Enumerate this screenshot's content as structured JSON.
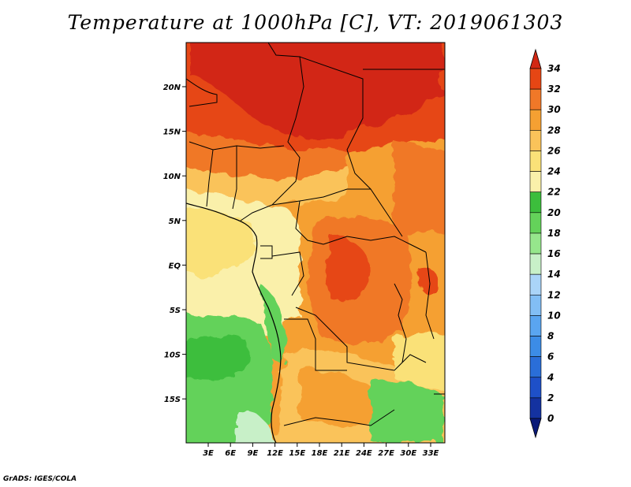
{
  "title": "Temperature at 1000hPa [C], VT: 2019061303",
  "credit": "GrADS: IGES/COLA",
  "map": {
    "lon_ticks": [
      "3E",
      "6E",
      "9E",
      "12E",
      "15E",
      "18E",
      "21E",
      "24E",
      "27E",
      "30E",
      "33E"
    ],
    "lat_ticks": [
      "20N",
      "15N",
      "10N",
      "5N",
      "EQ",
      "5S",
      "10S",
      "15S"
    ]
  },
  "colorbar": {
    "labels": [
      "0",
      "2",
      "4",
      "6",
      "8",
      "10",
      "12",
      "14",
      "16",
      "18",
      "20",
      "22",
      "24",
      "26",
      "28",
      "30",
      "32",
      "34"
    ],
    "colors": [
      "#0a1a78",
      "#1432a0",
      "#1e50c8",
      "#2a6ed8",
      "#3c8ce6",
      "#5aa5f0",
      "#82bef5",
      "#aad4f8",
      "#c8f0c8",
      "#96e68c",
      "#64d25a",
      "#3cbe3c",
      "#faf0aa",
      "#fae178",
      "#fac35a",
      "#f5a032",
      "#f07828",
      "#e64614",
      "#d22814"
    ]
  }
}
